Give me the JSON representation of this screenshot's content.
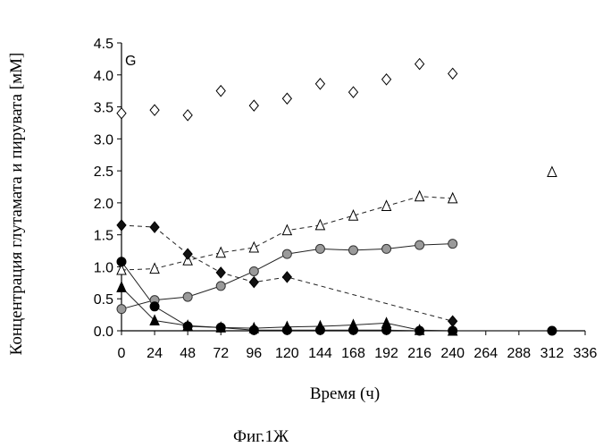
{
  "chart_data": {
    "type": "scatter",
    "panel_label": "G",
    "xlabel": "Время (ч)",
    "ylabel": "Концентрация глутамата и пирувата [мМ]",
    "caption": "Фиг.1Ж",
    "xlim": [
      0,
      336
    ],
    "ylim": [
      0,
      4.5
    ],
    "x_ticks": [
      "0",
      "24",
      "48",
      "72",
      "96",
      "120",
      "144",
      "168",
      "192",
      "216",
      "240",
      "264",
      "288",
      "312",
      "336"
    ],
    "y_ticks": [
      "0.0",
      "0.5",
      "1.0",
      "1.5",
      "2.0",
      "2.5",
      "3.0",
      "3.5",
      "4.0",
      "4.5"
    ],
    "series": [
      {
        "marker": "diamond-open",
        "line": "none",
        "points": [
          [
            0,
            3.4
          ],
          [
            24,
            3.45
          ],
          [
            48,
            3.37
          ],
          [
            72,
            3.75
          ],
          [
            96,
            3.52
          ],
          [
            120,
            3.63
          ],
          [
            144,
            3.86
          ],
          [
            168,
            3.73
          ],
          [
            192,
            3.93
          ],
          [
            216,
            4.17
          ],
          [
            240,
            4.02
          ]
        ]
      },
      {
        "marker": "triangle-open",
        "line": "dashed",
        "points": [
          [
            0,
            0.95
          ],
          [
            24,
            0.97
          ],
          [
            48,
            1.1
          ],
          [
            72,
            1.22
          ],
          [
            96,
            1.3
          ],
          [
            120,
            1.57
          ],
          [
            144,
            1.65
          ],
          [
            168,
            1.8
          ],
          [
            192,
            1.95
          ],
          [
            216,
            2.1
          ],
          [
            240,
            2.07
          ],
          [
            312,
            2.48
          ]
        ]
      },
      {
        "marker": "circle-gray",
        "line": "solid",
        "points": [
          [
            0,
            0.34
          ],
          [
            24,
            0.48
          ],
          [
            48,
            0.53
          ],
          [
            72,
            0.7
          ],
          [
            96,
            0.93
          ],
          [
            120,
            1.2
          ],
          [
            144,
            1.28
          ],
          [
            168,
            1.26
          ],
          [
            192,
            1.28
          ],
          [
            216,
            1.34
          ],
          [
            240,
            1.36
          ]
        ]
      },
      {
        "marker": "diamond-filled",
        "line": "dashed",
        "points": [
          [
            0,
            1.65
          ],
          [
            24,
            1.62
          ],
          [
            48,
            1.2
          ],
          [
            72,
            0.91
          ],
          [
            96,
            0.76
          ],
          [
            120,
            0.84
          ],
          [
            240,
            0.15
          ]
        ]
      },
      {
        "marker": "circle-filled",
        "line": "solid",
        "points": [
          [
            0,
            1.08
          ],
          [
            24,
            0.38
          ],
          [
            48,
            0.07
          ],
          [
            72,
            0.05
          ],
          [
            96,
            0.01
          ],
          [
            120,
            0.01
          ],
          [
            144,
            0.01
          ],
          [
            168,
            0.01
          ],
          [
            192,
            0.01
          ],
          [
            216,
            0.0
          ],
          [
            240,
            0.0
          ],
          [
            312,
            0.0
          ]
        ]
      },
      {
        "marker": "triangle-filled",
        "line": "solid",
        "points": [
          [
            0,
            0.68
          ],
          [
            24,
            0.16
          ],
          [
            48,
            0.08
          ],
          [
            72,
            0.05
          ],
          [
            96,
            0.04
          ],
          [
            120,
            0.06
          ],
          [
            144,
            0.07
          ],
          [
            168,
            0.09
          ],
          [
            192,
            0.12
          ],
          [
            216,
            0.01
          ],
          [
            240,
            0.0
          ]
        ]
      }
    ]
  }
}
